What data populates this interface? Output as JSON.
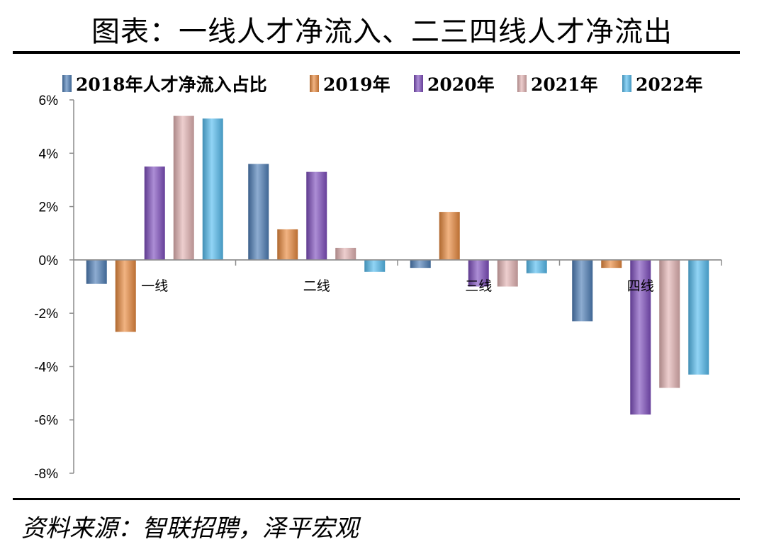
{
  "page": {
    "title": "图表：一线人才净流入、二三四线人才净流出",
    "source": "资料来源：智联招聘，泽平宏观"
  },
  "colors": {
    "2018年人才净流入占比": "#4f7fb8",
    "2019年": "#e98a3e",
    "2020年": "#7f4fbf",
    "2021年": "#e4b4b4",
    "2022年": "#56bdf0"
  },
  "chart_data": {
    "type": "bar",
    "title": "",
    "xlabel": "",
    "ylabel": "",
    "categories": [
      "一线",
      "二线",
      "三线",
      "四线"
    ],
    "ylim": [
      -0.08,
      0.06
    ],
    "yticks": [
      "6%",
      "4%",
      "2%",
      "0%",
      "-2%",
      "-4%",
      "-6%",
      "-8%"
    ],
    "ytick_values": [
      0.06,
      0.04,
      0.02,
      0.0,
      -0.02,
      -0.04,
      -0.06,
      -0.08
    ],
    "legend_position": "top",
    "series": [
      {
        "name": "2018年人才净流入占比",
        "values": [
          -0.009,
          0.036,
          -0.003,
          -0.023
        ]
      },
      {
        "name": "2019年",
        "values": [
          -0.027,
          0.0115,
          0.018,
          -0.003
        ]
      },
      {
        "name": "2020年",
        "values": [
          0.035,
          0.033,
          -0.01,
          -0.058
        ]
      },
      {
        "name": "2021年",
        "values": [
          0.054,
          0.0045,
          -0.01,
          -0.048
        ]
      },
      {
        "name": "2022年",
        "values": [
          0.053,
          -0.0045,
          -0.005,
          -0.043
        ]
      }
    ]
  }
}
